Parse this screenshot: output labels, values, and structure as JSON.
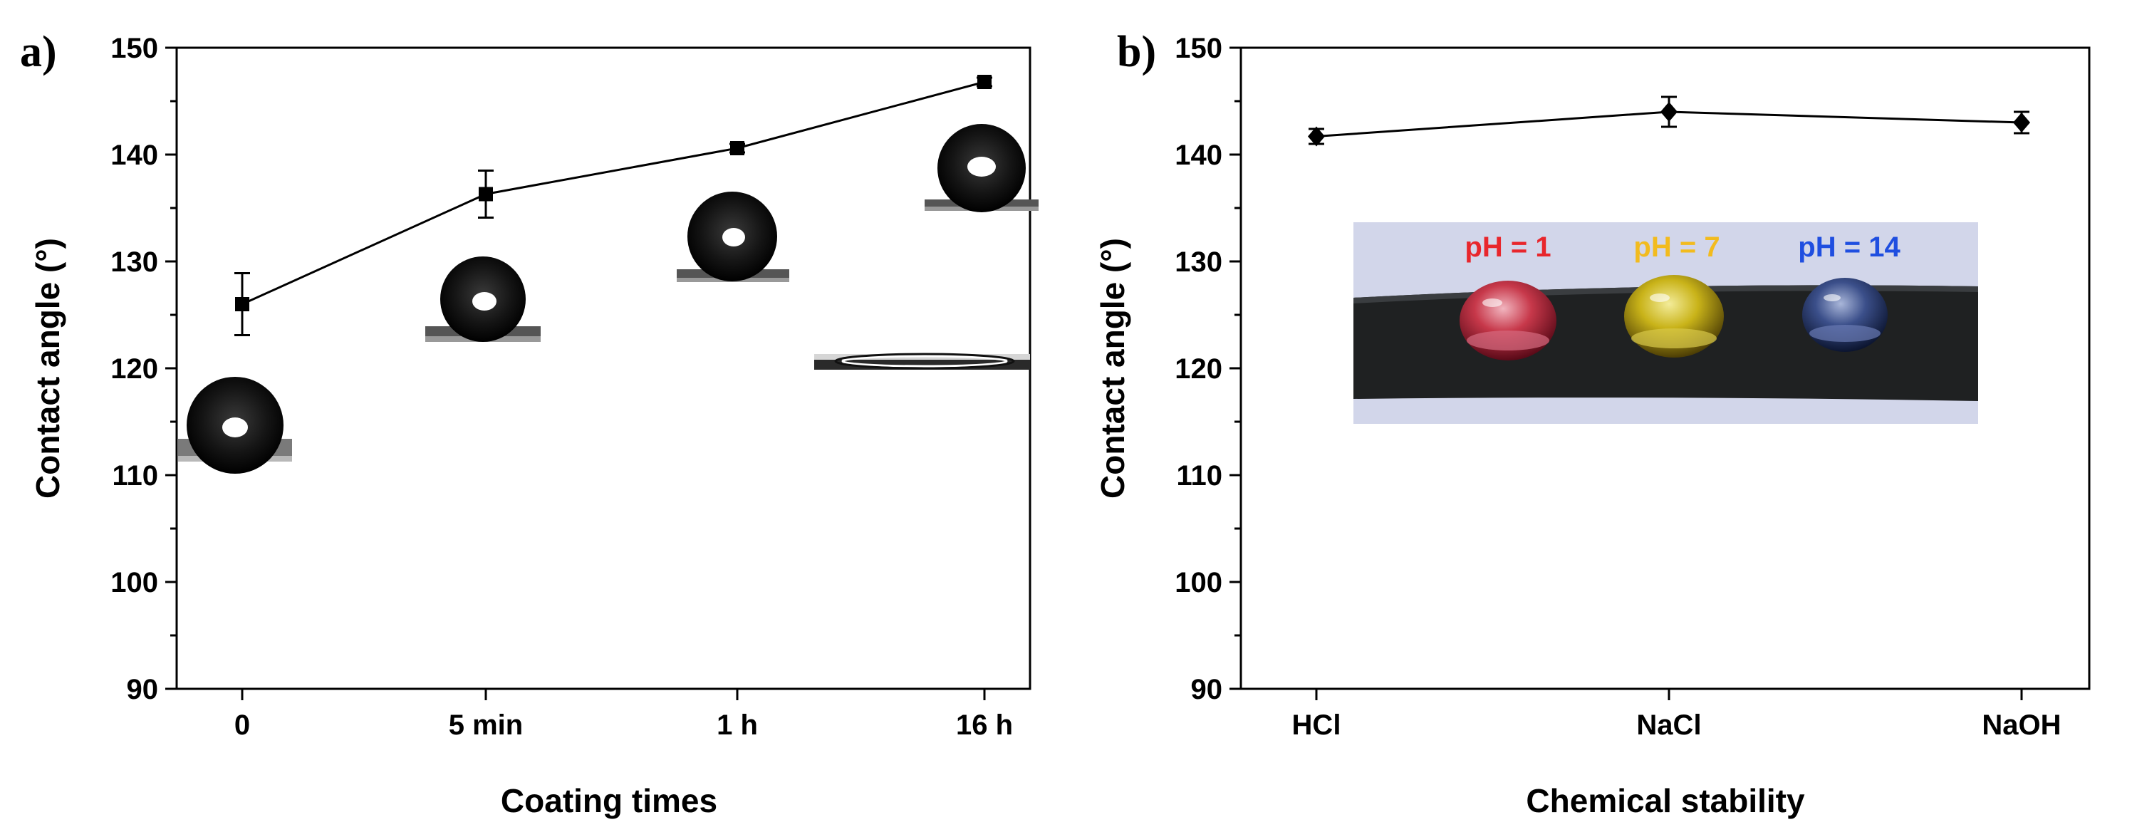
{
  "chart_data": [
    {
      "panel_label": "a)",
      "type": "line",
      "categories": [
        "0",
        "5 min",
        "1 h",
        "16 h"
      ],
      "series": [
        {
          "values": [
            126,
            136.3,
            140.6,
            146.8
          ],
          "errors": [
            2.9,
            2.2,
            0.4,
            0.4
          ],
          "marker": "square"
        }
      ],
      "xlabel": "Coating times",
      "ylabel": "Contact angle (°)",
      "ylim": [
        90,
        150
      ],
      "yticks": [
        90,
        100,
        110,
        120,
        130,
        140,
        150
      ],
      "legend": "none",
      "grid": false,
      "insets": [
        "droplet-0",
        "droplet-5min",
        "droplet-1h",
        "droplet-16h",
        "flat-film"
      ]
    },
    {
      "panel_label": "b)",
      "type": "line",
      "categories": [
        "HCl",
        "NaCl",
        "NaOH"
      ],
      "series": [
        {
          "values": [
            141.7,
            144,
            143
          ],
          "errors": [
            0.7,
            1.4,
            1.0
          ],
          "marker": "diamond"
        }
      ],
      "xlabel": "Chemical stability",
      "ylabel": "Contact angle (°)",
      "ylim": [
        90,
        150
      ],
      "yticks": [
        90,
        100,
        110,
        120,
        130,
        140,
        150
      ],
      "legend": "none",
      "grid": false,
      "inset_photo": {
        "labels": [
          {
            "text": "pH = 1",
            "color": "#e8262c"
          },
          {
            "text": "pH = 7",
            "color": "#f2bb1e"
          },
          {
            "text": "pH = 14",
            "color": "#1f4ee0"
          }
        ],
        "drop_colors": [
          "#c7384a",
          "#c9b319",
          "#3b4f8a"
        ]
      }
    }
  ]
}
